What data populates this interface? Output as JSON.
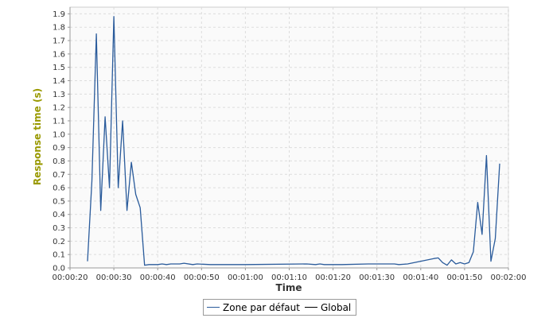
{
  "chart_data": {
    "type": "line",
    "xlabel": "Time",
    "ylabel": "Response time (s)",
    "xlim": [
      "00:00:20",
      "00:02:00"
    ],
    "ylim": [
      0,
      1.95
    ],
    "x_ticks": [
      "00:00:20",
      "00:00:30",
      "00:00:40",
      "00:00:50",
      "00:01:00",
      "00:01:10",
      "00:01:20",
      "00:01:30",
      "00:01:40",
      "00:01:50",
      "00:02:00"
    ],
    "y_ticks": [
      "0.0",
      "0.1",
      "0.2",
      "0.3",
      "0.4",
      "0.5",
      "0.6",
      "0.7",
      "0.8",
      "0.9",
      "1.0",
      "1.1",
      "1.2",
      "1.3",
      "1.4",
      "1.5",
      "1.6",
      "1.7",
      "1.8",
      "1.9"
    ],
    "grid": true,
    "legend_position": "bottom",
    "series": [
      {
        "name": "Zone par défaut",
        "color": "#2a5b9b",
        "points": [
          [
            "00:00:24",
            0.05
          ],
          [
            "00:00:25",
            0.65
          ],
          [
            "00:00:26",
            1.75
          ],
          [
            "00:00:27",
            0.43
          ],
          [
            "00:00:28",
            1.13
          ],
          [
            "00:00:29",
            0.6
          ],
          [
            "00:00:30",
            1.88
          ],
          [
            "00:00:31",
            0.6
          ],
          [
            "00:00:32",
            1.1
          ],
          [
            "00:00:33",
            0.43
          ],
          [
            "00:00:34",
            0.79
          ],
          [
            "00:00:35",
            0.55
          ],
          [
            "00:00:36",
            0.45
          ],
          [
            "00:00:37",
            0.02
          ],
          [
            "00:00:38",
            0.025
          ],
          [
            "00:00:40",
            0.025
          ],
          [
            "00:00:41",
            0.03
          ],
          [
            "00:00:42",
            0.025
          ],
          [
            "00:00:43",
            0.03
          ],
          [
            "00:00:45",
            0.03
          ],
          [
            "00:00:46",
            0.035
          ],
          [
            "00:00:48",
            0.025
          ],
          [
            "00:00:49",
            0.03
          ],
          [
            "00:00:52",
            0.025
          ],
          [
            "00:01:00",
            0.025
          ],
          [
            "00:01:14",
            0.03
          ],
          [
            "00:01:16",
            0.025
          ],
          [
            "00:01:17",
            0.03
          ],
          [
            "00:01:18",
            0.025
          ],
          [
            "00:01:22",
            0.025
          ],
          [
            "00:01:28",
            0.03
          ],
          [
            "00:01:34",
            0.03
          ],
          [
            "00:01:35",
            0.025
          ],
          [
            "00:01:37",
            0.03
          ],
          [
            "00:01:43",
            0.07
          ],
          [
            "00:01:44",
            0.075
          ],
          [
            "00:01:45",
            0.04
          ],
          [
            "00:01:46",
            0.02
          ],
          [
            "00:01:47",
            0.06
          ],
          [
            "00:01:48",
            0.03
          ],
          [
            "00:01:49",
            0.04
          ],
          [
            "00:01:50",
            0.03
          ],
          [
            "00:01:51",
            0.04
          ],
          [
            "00:01:52",
            0.12
          ],
          [
            "00:01:53",
            0.49
          ],
          [
            "00:01:54",
            0.25
          ],
          [
            "00:01:55",
            0.84
          ],
          [
            "00:01:56",
            0.05
          ],
          [
            "00:01:57",
            0.22
          ],
          [
            "00:01:58",
            0.78
          ]
        ]
      },
      {
        "name": "Global",
        "color": "#000000",
        "points": []
      }
    ]
  }
}
